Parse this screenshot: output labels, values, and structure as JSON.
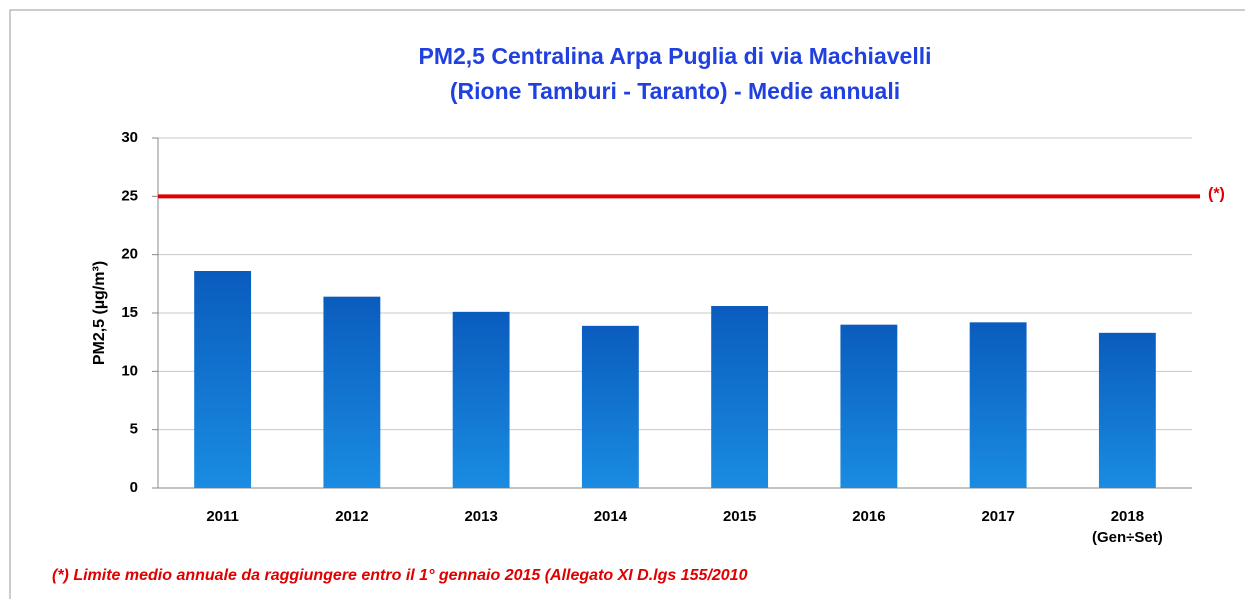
{
  "chart_data": {
    "type": "bar",
    "title": [
      "PM2,5 Centralina Arpa Puglia di via Machiavelli",
      "(Rione Tamburi - Taranto) - Medie annuali"
    ],
    "y_label": "PM2,5 (µg/m³)",
    "categories": [
      "2011",
      "2012",
      "2013",
      "2014",
      "2015",
      "2016",
      "2017",
      "2018\n(Gen÷Set)"
    ],
    "values": [
      18.6,
      16.4,
      15.1,
      13.9,
      15.6,
      14.0,
      14.2,
      13.3
    ],
    "color": [
      "#0a5cbd",
      "#1a8ce2"
    ],
    "ylim": [
      0,
      30
    ],
    "yticks": [
      0,
      5,
      10,
      15,
      20,
      25,
      30
    ],
    "grid": true,
    "reference_line": {
      "value": 25,
      "label": "(*)",
      "color": "#e00000"
    },
    "footnote": "(*) Limite medio annuale da raggiungere entro il 1° gennaio 2015 (Allegato XI D.lgs 155/2010"
  }
}
